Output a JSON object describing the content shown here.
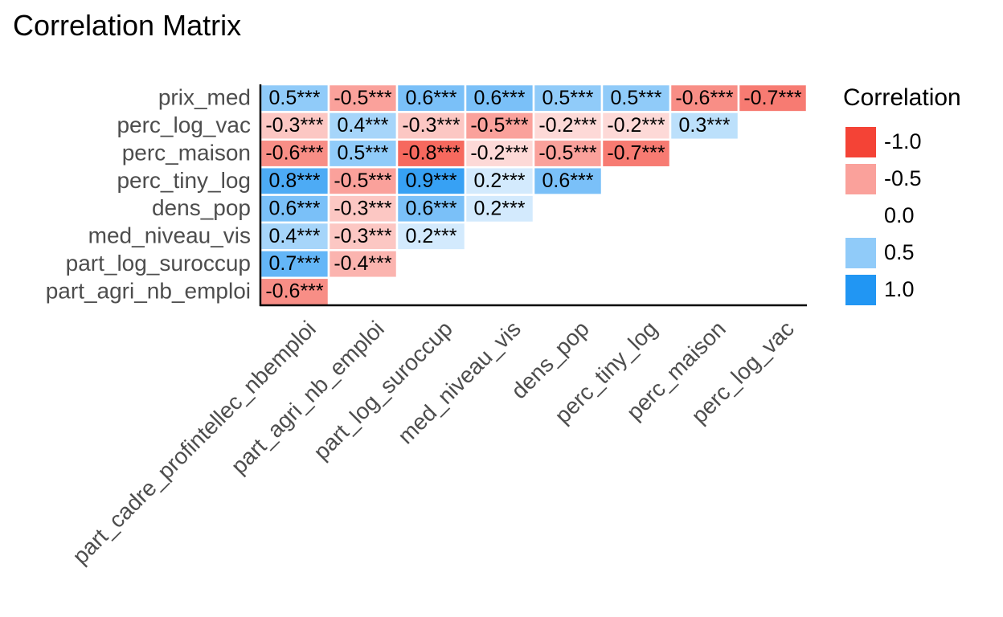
{
  "chart_data": {
    "type": "heatmap",
    "title": "Correlation Matrix",
    "xlabel": "",
    "ylabel": "",
    "x_categories": [
      "part_cadre_profintellec_nbemploi",
      "part_agri_nb_emploi",
      "part_log_suroccup",
      "med_niveau_vis",
      "dens_pop",
      "perc_tiny_log",
      "perc_maison",
      "perc_log_vac"
    ],
    "y_categories": [
      "prix_med",
      "perc_log_vac",
      "perc_maison",
      "perc_tiny_log",
      "dens_pop",
      "med_niveau_vis",
      "part_log_suroccup",
      "part_agri_nb_emploi"
    ],
    "values": [
      [
        0.5,
        -0.5,
        0.6,
        0.6,
        0.5,
        0.5,
        -0.6,
        -0.7
      ],
      [
        -0.3,
        0.4,
        -0.3,
        -0.5,
        -0.2,
        -0.2,
        0.3,
        null
      ],
      [
        -0.6,
        0.5,
        -0.8,
        -0.2,
        -0.5,
        -0.7,
        null,
        null
      ],
      [
        0.8,
        -0.5,
        0.9,
        0.2,
        0.6,
        null,
        null,
        null
      ],
      [
        0.6,
        -0.3,
        0.6,
        0.2,
        null,
        null,
        null,
        null
      ],
      [
        0.4,
        -0.3,
        0.2,
        null,
        null,
        null,
        null,
        null
      ],
      [
        0.7,
        -0.4,
        null,
        null,
        null,
        null,
        null,
        null
      ],
      [
        -0.6,
        null,
        null,
        null,
        null,
        null,
        null,
        null
      ]
    ],
    "labels": [
      [
        "0.5***",
        "-0.5***",
        "0.6***",
        "0.6***",
        "0.5***",
        "0.5***",
        "-0.6***",
        "-0.7***"
      ],
      [
        "-0.3***",
        "0.4***",
        "-0.3***",
        "-0.5***",
        "-0.2***",
        "-0.2***",
        "0.3***",
        null
      ],
      [
        "-0.6***",
        "0.5***",
        "-0.8***",
        "-0.2***",
        "-0.5***",
        "-0.7***",
        null,
        null
      ],
      [
        "0.8***",
        "-0.5***",
        "0.9***",
        "0.2***",
        "0.6***",
        null,
        null,
        null
      ],
      [
        "0.6***",
        "-0.3***",
        "0.6***",
        "0.2***",
        null,
        null,
        null,
        null
      ],
      [
        "0.4***",
        "-0.3***",
        "0.2***",
        null,
        null,
        null,
        null,
        null
      ],
      [
        "0.7***",
        "-0.4***",
        null,
        null,
        null,
        null,
        null,
        null
      ],
      [
        "-0.6***",
        null,
        null,
        null,
        null,
        null,
        null,
        null
      ]
    ],
    "legend": {
      "title": "Correlation",
      "placement": "right",
      "entries": [
        {
          "label": "-1.0",
          "value": -1.0
        },
        {
          "label": "-0.5",
          "value": -0.5
        },
        {
          "label": "0.0",
          "value": 0.0
        },
        {
          "label": "0.5",
          "value": 0.5
        },
        {
          "label": "1.0",
          "value": 1.0
        }
      ]
    },
    "color_scale": {
      "negative": "#f44336",
      "zero": "#ffffff",
      "positive": "#2196f3"
    },
    "grid": false
  }
}
